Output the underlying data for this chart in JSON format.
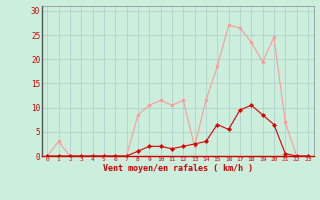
{
  "x": [
    0,
    1,
    2,
    3,
    4,
    5,
    6,
    7,
    8,
    9,
    10,
    11,
    12,
    13,
    14,
    15,
    16,
    17,
    18,
    19,
    20,
    21,
    22,
    23
  ],
  "rafales": [
    0,
    3,
    0,
    0,
    0,
    0,
    0,
    0,
    8.5,
    10.5,
    11.5,
    10.5,
    11.5,
    2,
    11.5,
    18.5,
    27,
    26.5,
    23.5,
    19.5,
    24.5,
    7,
    0,
    0
  ],
  "moyen": [
    0,
    0,
    0,
    0,
    0,
    0,
    0,
    0,
    1,
    2,
    2,
    1.5,
    2,
    2.5,
    3,
    6.5,
    5.5,
    9.5,
    10.5,
    8.5,
    6.5,
    0.5,
    0,
    0
  ],
  "line_color_rafales": "#ff9999",
  "line_color_moyen": "#dd0000",
  "bg_color": "#cceedd",
  "grid_color": "#aacccc",
  "xlabel": "Vent moyen/en rafales ( km/h )",
  "xlabel_color": "#cc0000",
  "tick_color": "#cc0000",
  "yticks": [
    0,
    5,
    10,
    15,
    20,
    25,
    30
  ],
  "ylim": [
    0,
    31
  ],
  "xlim": [
    -0.5,
    23.5
  ],
  "linewidth": 0.8,
  "markersize": 2.0
}
